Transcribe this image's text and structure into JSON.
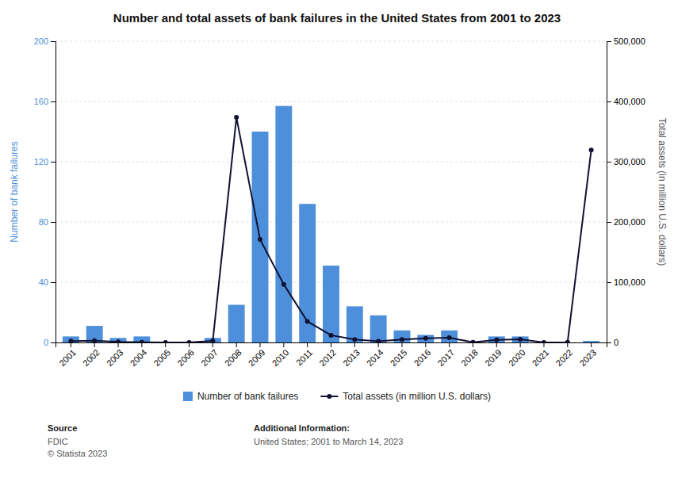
{
  "chart_data": {
    "type": "bar",
    "title": "Number and total assets of bank failures in the United States from 2001 to 2023",
    "categories": [
      "2001",
      "2002",
      "2003",
      "2004",
      "2005",
      "2006",
      "2007",
      "2008",
      "2009",
      "2010",
      "2011",
      "2012",
      "2013",
      "2014",
      "2015",
      "2016",
      "2017",
      "2018",
      "2019",
      "2020",
      "2021",
      "2022",
      "2023"
    ],
    "series": [
      {
        "name": "Number of bank failures",
        "type": "bar",
        "color": "#4d8fda",
        "values": [
          4,
          11,
          3,
          4,
          0,
          0,
          3,
          25,
          140,
          157,
          92,
          51,
          24,
          18,
          8,
          5,
          8,
          0,
          4,
          4,
          0,
          0,
          1
        ]
      },
      {
        "name": "Total assets (in million U.S. dollars)",
        "type": "line",
        "color": "#111133",
        "axis": "y2",
        "marker": "circle",
        "values": [
          2300,
          2800,
          900,
          200,
          0,
          0,
          2600,
          373588,
          170900,
          96500,
          34900,
          12000,
          4900,
          2000,
          5000,
          6900,
          7900,
          300,
          4200,
          5100,
          0,
          330,
          319400
        ]
      }
    ],
    "y_label": "Number of bank failures",
    "y2_label": "Total assets (in million U.S. dollars)",
    "ylim": [
      0,
      200
    ],
    "yticks": [
      0,
      40,
      80,
      120,
      160,
      200
    ],
    "y2lim": [
      0,
      500000
    ],
    "y2ticks": [
      0,
      {
        "value": 100000,
        "label": "100,000"
      },
      {
        "value": 200000,
        "label": "200,000"
      },
      {
        "value": 300000,
        "label": "300,000"
      },
      {
        "value": 400000,
        "label": "400,000"
      },
      {
        "value": 500000,
        "label": "500,000"
      }
    ],
    "grid": true,
    "legend": "bottom",
    "annotations": [
      {
        "heading": "Source",
        "lines": [
          "FDIC",
          "© Statista 2023"
        ]
      },
      {
        "heading": "Additional Information:",
        "lines": [
          "United States; 2001 to March 14, 2023"
        ]
      }
    ]
  }
}
